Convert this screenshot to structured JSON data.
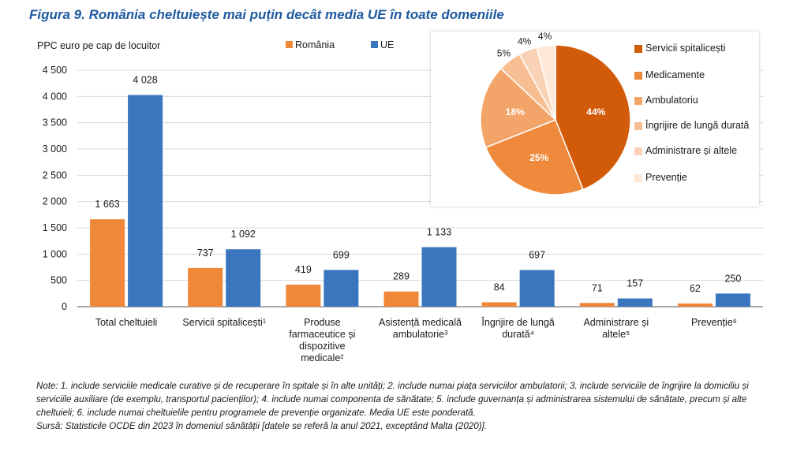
{
  "figure": {
    "title": "Figura 9. România cheltuiește mai puțin decât media UE în toate domeniile"
  },
  "colors": {
    "romania": "#f0883a",
    "ue": "#3a76bd",
    "grid": "#d9d9d9",
    "pie": [
      "#d25b0a",
      "#ef8a3c",
      "#f3a468",
      "#f7be93",
      "#fad3b6",
      "#fde8d8"
    ]
  },
  "chart_data": [
    {
      "type": "bar",
      "ylabel": "PPC euro pe cap de locuitor",
      "ylim": [
        0,
        4500
      ],
      "yticks": [
        0,
        500,
        1000,
        1500,
        2000,
        2500,
        3000,
        3500,
        4000,
        4500
      ],
      "ytick_labels": [
        "0",
        "500",
        "1 000",
        "1 500",
        "2 000",
        "2 500",
        "3 000",
        "3 500",
        "4 000",
        "4 500"
      ],
      "grid": true,
      "legend_position": "top",
      "categories": [
        [
          "Total cheltuieli"
        ],
        [
          "Servicii spitalicești¹"
        ],
        [
          "Produse",
          "farmaceutice și",
          "dispozitive",
          "medicale²"
        ],
        [
          "Asistență medicală",
          "ambulatorie³"
        ],
        [
          "Îngrijire de lungă",
          "durată⁴"
        ],
        [
          "Administrare și",
          "altele⁵"
        ],
        [
          "Prevenție⁶"
        ]
      ],
      "series": [
        {
          "name": "România",
          "values": [
            1663,
            737,
            419,
            289,
            84,
            71,
            62
          ],
          "labels": [
            "1 663",
            "737",
            "419",
            "289",
            "84",
            "71",
            "62"
          ]
        },
        {
          "name": "UE",
          "values": [
            4028,
            1092,
            699,
            1133,
            697,
            157,
            250
          ],
          "labels": [
            "4 028",
            "1 092",
            "699",
            "1 133",
            "697",
            "157",
            "250"
          ]
        }
      ]
    },
    {
      "type": "pie",
      "legend_position": "right",
      "slices": [
        {
          "name": "Servicii spitalicești",
          "value": 44,
          "label": "44%"
        },
        {
          "name": "Medicamente",
          "value": 25,
          "label": "25%"
        },
        {
          "name": "Ambulatoriu",
          "value": 18,
          "label": "18%"
        },
        {
          "name": "Îngrijire de lungă durată",
          "value": 5,
          "label": "5%"
        },
        {
          "name": "Administrare și altele",
          "value": 4,
          "label": "4%"
        },
        {
          "name": "Prevenție",
          "value": 4,
          "label": "4%"
        }
      ]
    }
  ],
  "notes": {
    "text": "Note: 1. include serviciile medicale curative și de recuperare în spitale și în alte unități; 2. include numai piața serviciilor ambulatorii; 3. include serviciile de îngrijire la domiciliu și serviciile auxiliare (de exemplu, transportul pacienților); 4. include numai componenta de sănătate; 5. include guvernanța și administrarea sistemului de sănătate, precum și alte cheltuieli; 6. include numai cheltuielile pentru programele de prevenție organizate. Media UE este ponderată.",
    "source": "Sursă: Statisticile OCDE din 2023 în domeniul sănătății [datele se referă la anul 2021, exceptând Malta (2020)]."
  }
}
